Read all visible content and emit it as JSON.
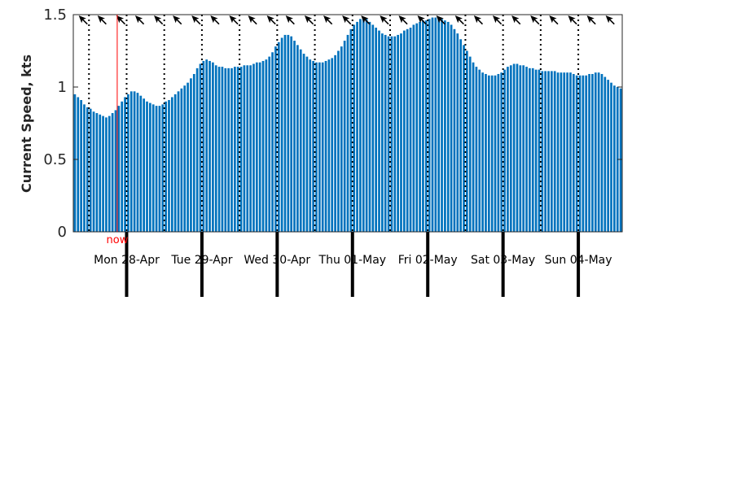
{
  "chart_data": {
    "type": "bar",
    "ylabel": "Current Speed, kts",
    "ylim": [
      0,
      1.5
    ],
    "yticks": [
      "0",
      "0.5",
      "1",
      "1.5"
    ],
    "now_label": "now",
    "now_color": "#ff0000",
    "bar_color": "#0072bd",
    "days": [
      "Mon 28-Apr",
      "Tue 29-Apr",
      "Wed 30-Apr",
      "Thu 01-May",
      "Fri 02-May",
      "Sat 03-May",
      "Sun 04-May"
    ],
    "hours_per_day": 24,
    "start_hour": 7,
    "now_hour": 21,
    "direction": "north-west",
    "values": [
      0.95,
      0.93,
      0.91,
      0.88,
      0.86,
      0.85,
      0.83,
      0.82,
      0.81,
      0.8,
      0.79,
      0.8,
      0.82,
      0.84,
      0.87,
      0.9,
      0.93,
      0.95,
      0.97,
      0.97,
      0.96,
      0.94,
      0.92,
      0.9,
      0.89,
      0.88,
      0.87,
      0.87,
      0.88,
      0.9,
      0.91,
      0.93,
      0.95,
      0.97,
      0.99,
      1.01,
      1.03,
      1.06,
      1.09,
      1.13,
      1.16,
      1.18,
      1.19,
      1.18,
      1.17,
      1.15,
      1.14,
      1.14,
      1.13,
      1.13,
      1.13,
      1.14,
      1.14,
      1.14,
      1.15,
      1.15,
      1.15,
      1.16,
      1.17,
      1.17,
      1.18,
      1.19,
      1.21,
      1.24,
      1.28,
      1.31,
      1.34,
      1.36,
      1.36,
      1.35,
      1.32,
      1.29,
      1.26,
      1.23,
      1.21,
      1.19,
      1.18,
      1.17,
      1.17,
      1.17,
      1.18,
      1.19,
      1.2,
      1.22,
      1.25,
      1.28,
      1.32,
      1.36,
      1.4,
      1.43,
      1.45,
      1.47,
      1.48,
      1.47,
      1.45,
      1.43,
      1.41,
      1.39,
      1.37,
      1.36,
      1.35,
      1.35,
      1.35,
      1.36,
      1.37,
      1.39,
      1.4,
      1.41,
      1.43,
      1.44,
      1.45,
      1.46,
      1.46,
      1.47,
      1.48,
      1.48,
      1.47,
      1.47,
      1.46,
      1.45,
      1.43,
      1.4,
      1.37,
      1.33,
      1.29,
      1.25,
      1.21,
      1.17,
      1.14,
      1.12,
      1.1,
      1.09,
      1.08,
      1.08,
      1.08,
      1.09,
      1.1,
      1.12,
      1.14,
      1.15,
      1.16,
      1.16,
      1.15,
      1.15,
      1.14,
      1.13,
      1.13,
      1.12,
      1.12,
      1.11,
      1.11,
      1.11,
      1.11,
      1.11,
      1.1,
      1.1,
      1.1,
      1.1,
      1.1,
      1.09,
      1.08,
      1.08,
      1.08,
      1.08,
      1.09,
      1.09,
      1.1,
      1.1,
      1.09,
      1.07,
      1.05,
      1.03,
      1.01,
      1.0,
      0.99
    ]
  }
}
